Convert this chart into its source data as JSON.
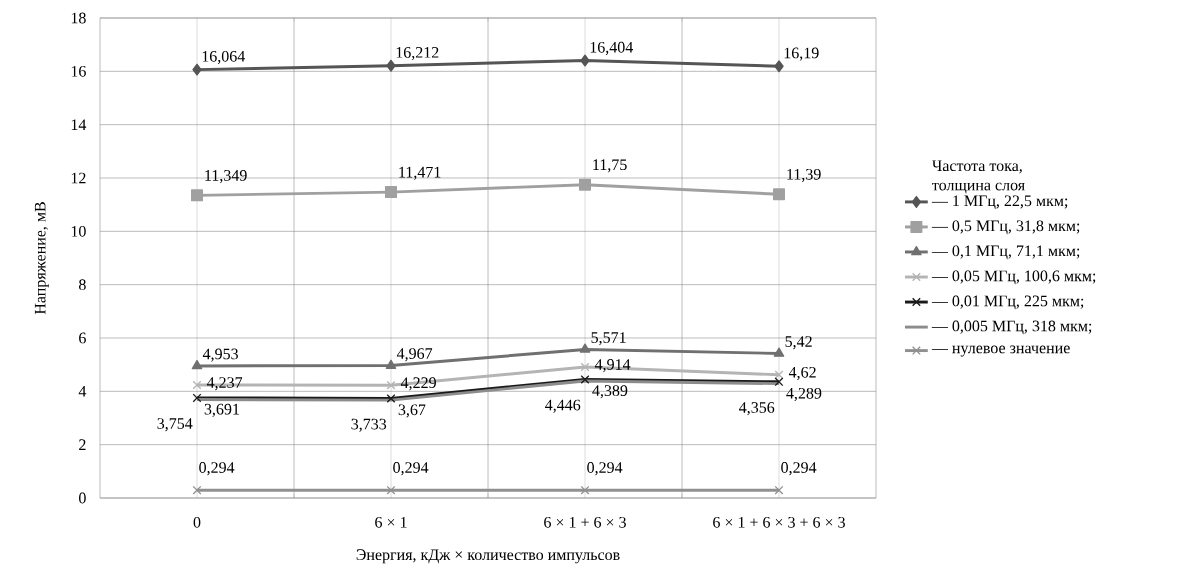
{
  "chart_data": {
    "type": "line",
    "xlabel": "Энергия, кДж × количество импульсов",
    "ylabel": "Напряжение, мВ",
    "categories": [
      "0",
      "6 × 1",
      "6 × 1 + 6 × 3",
      "6 × 1 + 6 × 3 + 6 × 3"
    ],
    "ylim": [
      0,
      18
    ],
    "yticks": [
      0,
      2,
      4,
      6,
      8,
      10,
      12,
      14,
      16,
      18
    ],
    "grid": true,
    "legend": "right",
    "legend_title": "Частота тока, толщина слоя",
    "series": [
      {
        "name": "— 1 МГц, 22,5 мкм;",
        "color": "#555555",
        "marker": "diamond",
        "values": [
          16.064,
          16.212,
          16.404,
          16.19
        ],
        "value_labels": [
          "16,064",
          "16,212",
          "16,404",
          "16,19"
        ]
      },
      {
        "name": "— 0,5 МГц, 31,8 мкм;",
        "color": "#a0a0a0",
        "marker": "square",
        "values": [
          11.349,
          11.471,
          11.75,
          11.39
        ],
        "value_labels": [
          "11,349",
          "11,471",
          "11,75",
          "11,39"
        ]
      },
      {
        "name": "— 0,1 МГц, 71,1 мкм;",
        "color": "#707070",
        "marker": "triangle",
        "values": [
          4.953,
          4.967,
          5.571,
          5.42
        ],
        "value_labels": [
          "4,953",
          "4,967",
          "5,571",
          "5,42"
        ]
      },
      {
        "name": "— 0,05 МГц, 100,6 мкм;",
        "color": "#b4b4b4",
        "marker": "cross",
        "values": [
          4.237,
          4.229,
          4.914,
          4.62
        ],
        "value_labels": [
          "4,237",
          "4,229",
          "4,914",
          "4,62"
        ]
      },
      {
        "name": "— 0,01 МГц, 225 мкм;",
        "color": "#1a1a1a",
        "marker": "cross",
        "values": [
          3.754,
          3.733,
          4.446,
          4.356
        ],
        "value_labels": [
          "3,754",
          "3,733",
          "4,446",
          "4,356"
        ]
      },
      {
        "name": "— 0,005 МГц, 318 мкм;",
        "color": "#8c8c8c",
        "marker": "none",
        "values": [
          3.691,
          3.67,
          4.389,
          4.289
        ],
        "value_labels": [
          "3,691",
          "3,67",
          "4,389",
          "4,289"
        ]
      },
      {
        "name": "— нулевое значение",
        "color": "#909090",
        "marker": "cross",
        "values": [
          0.294,
          0.294,
          0.294,
          0.294
        ],
        "value_labels": [
          "0,294",
          "0,294",
          "0,294",
          "0,294"
        ]
      }
    ]
  }
}
